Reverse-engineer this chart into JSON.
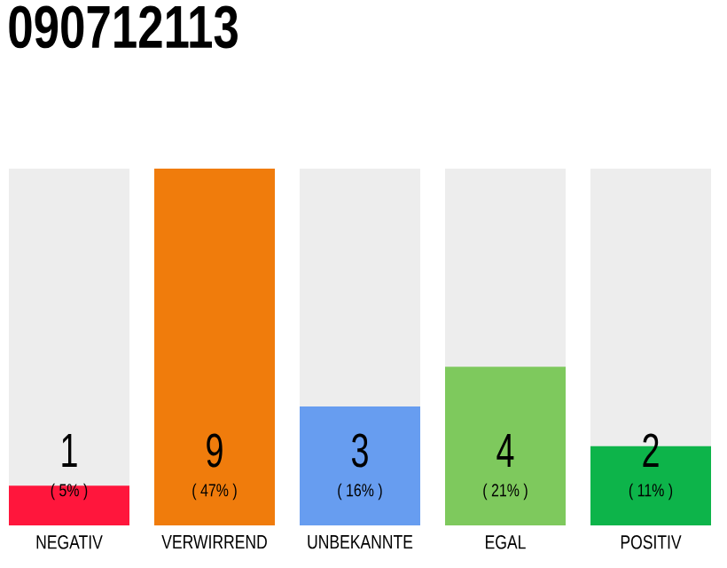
{
  "chart_data": {
    "type": "bar",
    "title": "090712113",
    "categories": [
      "NEGATIV",
      "VERWIRREND",
      "UNBEKANNTE",
      "EGAL",
      "POSITIV"
    ],
    "values": [
      1,
      9,
      3,
      4,
      2
    ],
    "colors": [
      "#ff163c",
      "#f07c0c",
      "#679df0",
      "#7ec95d",
      "#0db44a"
    ],
    "ylim": [
      0,
      9
    ],
    "data_labels": true,
    "tick_labels": "x",
    "annotations": [
      "( 5% )",
      "( 47% )",
      "( 16% )",
      "( 21% )",
      "( 11% )"
    ]
  }
}
